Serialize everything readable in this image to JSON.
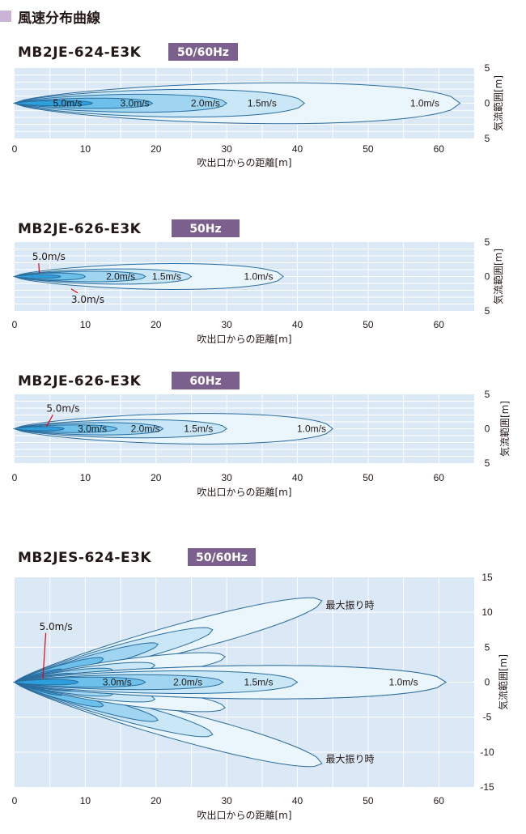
{
  "page": {
    "title": "風速分布曲線"
  },
  "colors": {
    "plot_bg": "#dbe8f5",
    "grid": "#ffffff",
    "contour_stroke": "#2a6d9e",
    "badge": "#7b5f8c",
    "zones": [
      "#eaf5fc",
      "#c9e7f7",
      "#9fd5f0",
      "#6cc0ea",
      "#2d9fdc"
    ]
  },
  "chart_data": [
    {
      "type": "contour",
      "model": "MB2JE-624-E3K",
      "frequency": "50/60Hz",
      "xlabel": "吹出口からの距離[m]",
      "ylabel": "気流範囲[m]",
      "xlim": [
        0,
        65
      ],
      "ylim": [
        -5,
        5
      ],
      "xticks": [
        "0",
        "10",
        "20",
        "30",
        "40",
        "50",
        "60"
      ],
      "yticks": [
        "5",
        "0",
        "5"
      ],
      "zones": [
        {
          "label": "1.0m/s",
          "reach": 63,
          "half_width": 3.4,
          "label_x": 58
        },
        {
          "label": "1.5m/s",
          "reach": 41,
          "half_width": 2.3,
          "label_x": 35
        },
        {
          "label": "2.0m/s",
          "reach": 30,
          "half_width": 1.5,
          "label_x": 27
        },
        {
          "label": "3.0m/s",
          "reach": 19.5,
          "half_width": 0.85,
          "label_x": 17
        },
        {
          "label": "5.0m/s",
          "reach": 11,
          "half_width": 0.45,
          "label_x": 7.5
        }
      ]
    },
    {
      "type": "contour",
      "model": "MB2JE-626-E3K",
      "frequency": "50Hz",
      "xlabel": "吹出口からの距離[m]",
      "ylabel": "気流範囲[m]",
      "xlim": [
        0,
        65
      ],
      "ylim": [
        -5,
        5
      ],
      "xticks": [
        "0",
        "10",
        "20",
        "30",
        "40",
        "50",
        "60"
      ],
      "yticks": [
        "5",
        "0",
        "5"
      ],
      "zones": [
        {
          "label": "1.0m/s",
          "reach": 38,
          "half_width": 2.2,
          "label_x": 34.5
        },
        {
          "label": "1.5m/s",
          "reach": 25,
          "half_width": 1.3,
          "label_x": 21.5
        },
        {
          "label": "2.0m/s",
          "reach": 18.5,
          "half_width": 0.9,
          "label_x": 15
        },
        {
          "label": "3.0m/s",
          "reach": 10,
          "half_width": 0.6,
          "label_x": null
        },
        {
          "label": "5.0m/s",
          "reach": 6.5,
          "half_width": 0.3,
          "label_x": null
        }
      ],
      "annotations": [
        {
          "text": "5.0m/s",
          "x": 2.5,
          "y": 2.4,
          "tx": 3.5,
          "ty": 0.5
        },
        {
          "text": "3.0m/s",
          "x": 8,
          "y": -3.8,
          "tx": 8,
          "ty": -1.8
        }
      ]
    },
    {
      "type": "contour",
      "model": "MB2JE-626-E3K",
      "frequency": "60Hz",
      "xlabel": "吹出口からの距離[m]",
      "ylabel": "気流範囲[m]",
      "xlim": [
        0,
        65
      ],
      "ylim": [
        -5,
        5
      ],
      "xticks": [
        "0",
        "10",
        "20",
        "30",
        "40",
        "50",
        "60"
      ],
      "yticks": [
        "5",
        "0",
        "5"
      ],
      "zones": [
        {
          "label": "1.0m/s",
          "reach": 45,
          "half_width": 2.6,
          "label_x": 42
        },
        {
          "label": "1.5m/s",
          "reach": 30,
          "half_width": 1.55,
          "label_x": 26
        },
        {
          "label": "2.0m/s",
          "reach": 21,
          "half_width": 1.05,
          "label_x": 18.5
        },
        {
          "label": "3.0m/s",
          "reach": 14.5,
          "half_width": 0.65,
          "label_x": 11
        },
        {
          "label": "5.0m/s",
          "reach": 7,
          "half_width": 0.35,
          "label_x": null
        }
      ],
      "annotations": [
        {
          "text": "5.0m/s",
          "x": 4.5,
          "y": 2.5,
          "tx": 4.5,
          "ty": 0.3
        }
      ]
    },
    {
      "type": "contour_swing",
      "model": "MB2JES-624-E3K",
      "frequency": "50/60Hz",
      "xlabel": "吹出口からの距離[m]",
      "ylabel": "気流範囲[m]",
      "xlim": [
        0,
        65
      ],
      "ylim": [
        -15,
        15
      ],
      "xticks": [
        "0",
        "10",
        "20",
        "30",
        "40",
        "50",
        "60"
      ],
      "yticks": [
        "15",
        "10",
        "5",
        "0",
        "-5",
        "-10",
        "-15"
      ],
      "swing_label": "最大振り時",
      "lobes": [
        {
          "angle_deg": 0,
          "zones": [
            {
              "label": "1.0m/s",
              "reach": 61,
              "half_width": 2.8,
              "label_x": 55
            },
            {
              "label": "1.5m/s",
              "reach": 40,
              "half_width": 1.9,
              "label_x": 34.5
            },
            {
              "label": "2.0m/s",
              "reach": 29.5,
              "half_width": 1.25,
              "label_x": 24.5
            },
            {
              "label": "3.0m/s",
              "reach": 18.5,
              "half_width": 0.85,
              "label_x": 14.5
            },
            {
              "label": "5.0m/s",
              "reach": 9,
              "half_width": 0.45,
              "label_x": null
            }
          ]
        },
        {
          "angle_deg": 15,
          "zones": [
            {
              "label": "",
              "reach": 45,
              "half_width": 2.4,
              "label_x": null
            },
            {
              "label": "",
              "reach": 29,
              "half_width": 1.6,
              "label_x": null
            },
            {
              "label": "",
              "reach": 21,
              "half_width": 1.1,
              "label_x": null
            },
            {
              "label": "",
              "reach": 13,
              "half_width": 0.8,
              "label_x": null
            },
            {
              "label": "",
              "reach": 7,
              "half_width": 0.4,
              "label_x": null
            }
          ]
        },
        {
          "angle_deg": 7,
          "zones": [
            {
              "label": "",
              "reach": 30,
              "half_width": 1.6,
              "label_x": null
            },
            {
              "label": "",
              "reach": 20,
              "half_width": 1.1,
              "label_x": null
            },
            {
              "label": "",
              "reach": 14,
              "half_width": 0.8,
              "label_x": null
            },
            {
              "label": "",
              "reach": 9,
              "half_width": 0.5,
              "label_x": null
            }
          ]
        },
        {
          "angle_deg": -7,
          "zones": [
            {
              "label": "",
              "reach": 30,
              "half_width": 1.6,
              "label_x": null
            },
            {
              "label": "",
              "reach": 20,
              "half_width": 1.1,
              "label_x": null
            },
            {
              "label": "",
              "reach": 14,
              "half_width": 0.8,
              "label_x": null
            },
            {
              "label": "",
              "reach": 9,
              "half_width": 0.5,
              "label_x": null
            }
          ]
        },
        {
          "angle_deg": -15,
          "zones": [
            {
              "label": "",
              "reach": 45,
              "half_width": 2.4,
              "label_x": null
            },
            {
              "label": "",
              "reach": 29,
              "half_width": 1.6,
              "label_x": null
            },
            {
              "label": "",
              "reach": 21,
              "half_width": 1.1,
              "label_x": null
            },
            {
              "label": "",
              "reach": 13,
              "half_width": 0.8,
              "label_x": null
            },
            {
              "label": "",
              "reach": 7,
              "half_width": 0.4,
              "label_x": null
            }
          ]
        }
      ],
      "annotations": [
        {
          "text": "5.0m/s",
          "x": 3.5,
          "y": 7.5,
          "tx": 4,
          "ty": 0.5
        }
      ],
      "swing_labels": [
        {
          "x": 44,
          "y": 11
        },
        {
          "x": 44,
          "y": -11
        }
      ]
    }
  ]
}
